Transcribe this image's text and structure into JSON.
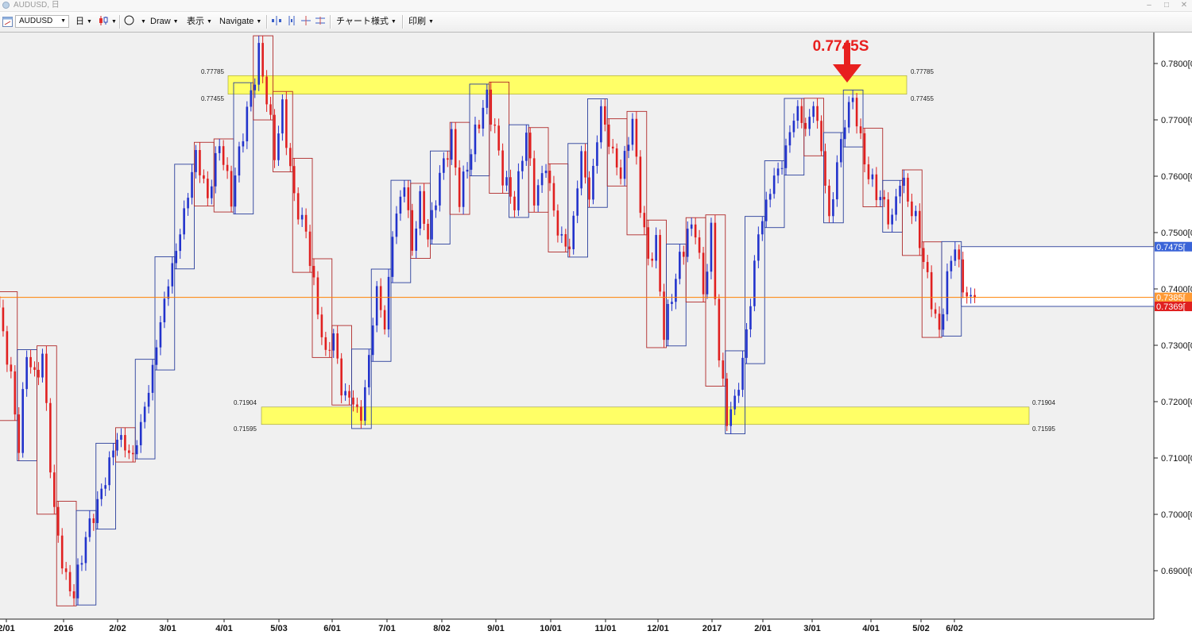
{
  "window": {
    "title": "AUDUSD, 日"
  },
  "toolbar": {
    "symbol": "AUDUSD",
    "timeframe": "日",
    "draw": "Draw",
    "view": "表示",
    "navigate": "Navigate",
    "chart_style": "チャート様式",
    "print": "印刷"
  },
  "colors": {
    "up_box": "#2a3f9c",
    "down_box": "#b02a2a",
    "up_candle": "#2233cc",
    "down_candle": "#e02020",
    "zone_fill": "#ffff66",
    "annotation": "#e8201f",
    "current_line": "#ff8000",
    "background": "#f0f0f0"
  },
  "chart_data": {
    "type": "candlestick",
    "symbol": "AUDUSD",
    "ylim": [
      0.683,
      0.7815
    ],
    "y_ticks": [
      {
        "value": 0.69,
        "label": "0.6900[0"
      },
      {
        "value": 0.7,
        "label": "0.7000[0"
      },
      {
        "value": 0.71,
        "label": "0.7100[0"
      },
      {
        "value": 0.72,
        "label": "0.7200[0"
      },
      {
        "value": 0.73,
        "label": "0.7300[0"
      },
      {
        "value": 0.74,
        "label": "0.7400[0"
      },
      {
        "value": 0.75,
        "label": "0.7500[0"
      },
      {
        "value": 0.76,
        "label": "0.7600[0"
      },
      {
        "value": 0.77,
        "label": "0.7700[0"
      },
      {
        "value": 0.78,
        "label": "0.7800[0"
      }
    ],
    "x_labels": [
      "2/01",
      "2016",
      "2/02",
      "3/01",
      "4/01",
      "5/03",
      "6/01",
      "7/01",
      "8/02",
      "9/01",
      "10/01",
      "11/01",
      "12/01",
      "2017",
      "2/01",
      "3/01",
      "4/01",
      "5/02",
      "6/02"
    ],
    "price_tags": [
      {
        "value": 0.7475,
        "label": "0.7475[",
        "color": "#3a64d8"
      },
      {
        "value": 0.7385,
        "label": "0.7385[",
        "color": "#ff9933"
      },
      {
        "value": 0.7369,
        "label": "0.7369[",
        "color": "#e02020"
      }
    ],
    "resistance_zone": {
      "high": 0.77785,
      "low": 0.77455,
      "high_label": "0.77785",
      "low_label": "0.77455"
    },
    "support_zone": {
      "high": 0.71904,
      "low": 0.71595,
      "high_label": "0.71904",
      "low_label": "0.71595"
    },
    "annotation": {
      "text": "0.7745S"
    },
    "current_line": 0.7385,
    "pivots": [
      [
        0,
        0.736
      ],
      [
        3,
        0.724
      ],
      [
        5,
        0.712
      ],
      [
        7,
        0.729
      ],
      [
        9,
        0.724
      ],
      [
        11,
        0.728
      ],
      [
        14,
        0.7
      ],
      [
        17,
        0.688
      ],
      [
        19,
        0.686
      ],
      [
        22,
        0.696
      ],
      [
        26,
        0.704
      ],
      [
        30,
        0.714
      ],
      [
        34,
        0.71
      ],
      [
        38,
        0.722
      ],
      [
        42,
        0.738
      ],
      [
        46,
        0.75
      ],
      [
        50,
        0.764
      ],
      [
        53,
        0.756
      ],
      [
        56,
        0.766
      ],
      [
        59,
        0.756
      ],
      [
        62,
        0.768
      ],
      [
        65,
        0.778
      ],
      [
        66,
        0.782
      ],
      [
        68,
        0.774
      ],
      [
        70,
        0.764
      ],
      [
        72,
        0.772
      ],
      [
        75,
        0.756
      ],
      [
        78,
        0.75
      ],
      [
        81,
        0.736
      ],
      [
        83,
        0.728
      ],
      [
        85,
        0.732
      ],
      [
        87,
        0.722
      ],
      [
        90,
        0.72
      ],
      [
        92,
        0.717
      ],
      [
        94,
        0.728
      ],
      [
        96,
        0.74
      ],
      [
        98,
        0.733
      ],
      [
        100,
        0.75
      ],
      [
        103,
        0.759
      ],
      [
        105,
        0.747
      ],
      [
        107,
        0.756
      ],
      [
        109,
        0.749
      ],
      [
        112,
        0.76
      ],
      [
        115,
        0.767
      ],
      [
        117,
        0.756
      ],
      [
        119,
        0.762
      ],
      [
        122,
        0.77
      ],
      [
        124,
        0.774
      ],
      [
        126,
        0.768
      ],
      [
        128,
        0.76
      ],
      [
        131,
        0.755
      ],
      [
        134,
        0.768
      ],
      [
        136,
        0.756
      ],
      [
        139,
        0.762
      ],
      [
        142,
        0.75
      ],
      [
        145,
        0.747
      ],
      [
        148,
        0.764
      ],
      [
        150,
        0.756
      ],
      [
        153,
        0.772
      ],
      [
        155,
        0.766
      ],
      [
        158,
        0.76
      ],
      [
        161,
        0.77
      ],
      [
        163,
        0.755
      ],
      [
        165,
        0.745
      ],
      [
        167,
        0.748
      ],
      [
        169,
        0.732
      ],
      [
        171,
        0.739
      ],
      [
        173,
        0.745
      ],
      [
        175,
        0.75
      ],
      [
        177,
        0.751
      ],
      [
        179,
        0.739
      ],
      [
        181,
        0.75
      ],
      [
        183,
        0.728
      ],
      [
        185,
        0.717
      ],
      [
        187,
        0.72
      ],
      [
        189,
        0.727
      ],
      [
        191,
        0.738
      ],
      [
        193,
        0.75
      ],
      [
        195,
        0.755
      ],
      [
        197,
        0.76
      ],
      [
        199,
        0.762
      ],
      [
        201,
        0.768
      ],
      [
        203,
        0.772
      ],
      [
        205,
        0.768
      ],
      [
        207,
        0.773
      ],
      [
        209,
        0.765
      ],
      [
        211,
        0.752
      ],
      [
        213,
        0.762
      ],
      [
        215,
        0.77
      ],
      [
        217,
        0.774
      ],
      [
        219,
        0.766
      ],
      [
        221,
        0.76
      ],
      [
        224,
        0.756
      ],
      [
        227,
        0.752
      ],
      [
        229,
        0.76
      ],
      [
        231,
        0.756
      ],
      [
        233,
        0.752
      ],
      [
        235,
        0.745
      ],
      [
        237,
        0.738
      ],
      [
        239,
        0.732
      ],
      [
        241,
        0.742
      ],
      [
        243,
        0.748
      ],
      [
        245,
        0.74
      ],
      [
        247,
        0.738
      ],
      [
        248,
        0.7385
      ]
    ]
  }
}
